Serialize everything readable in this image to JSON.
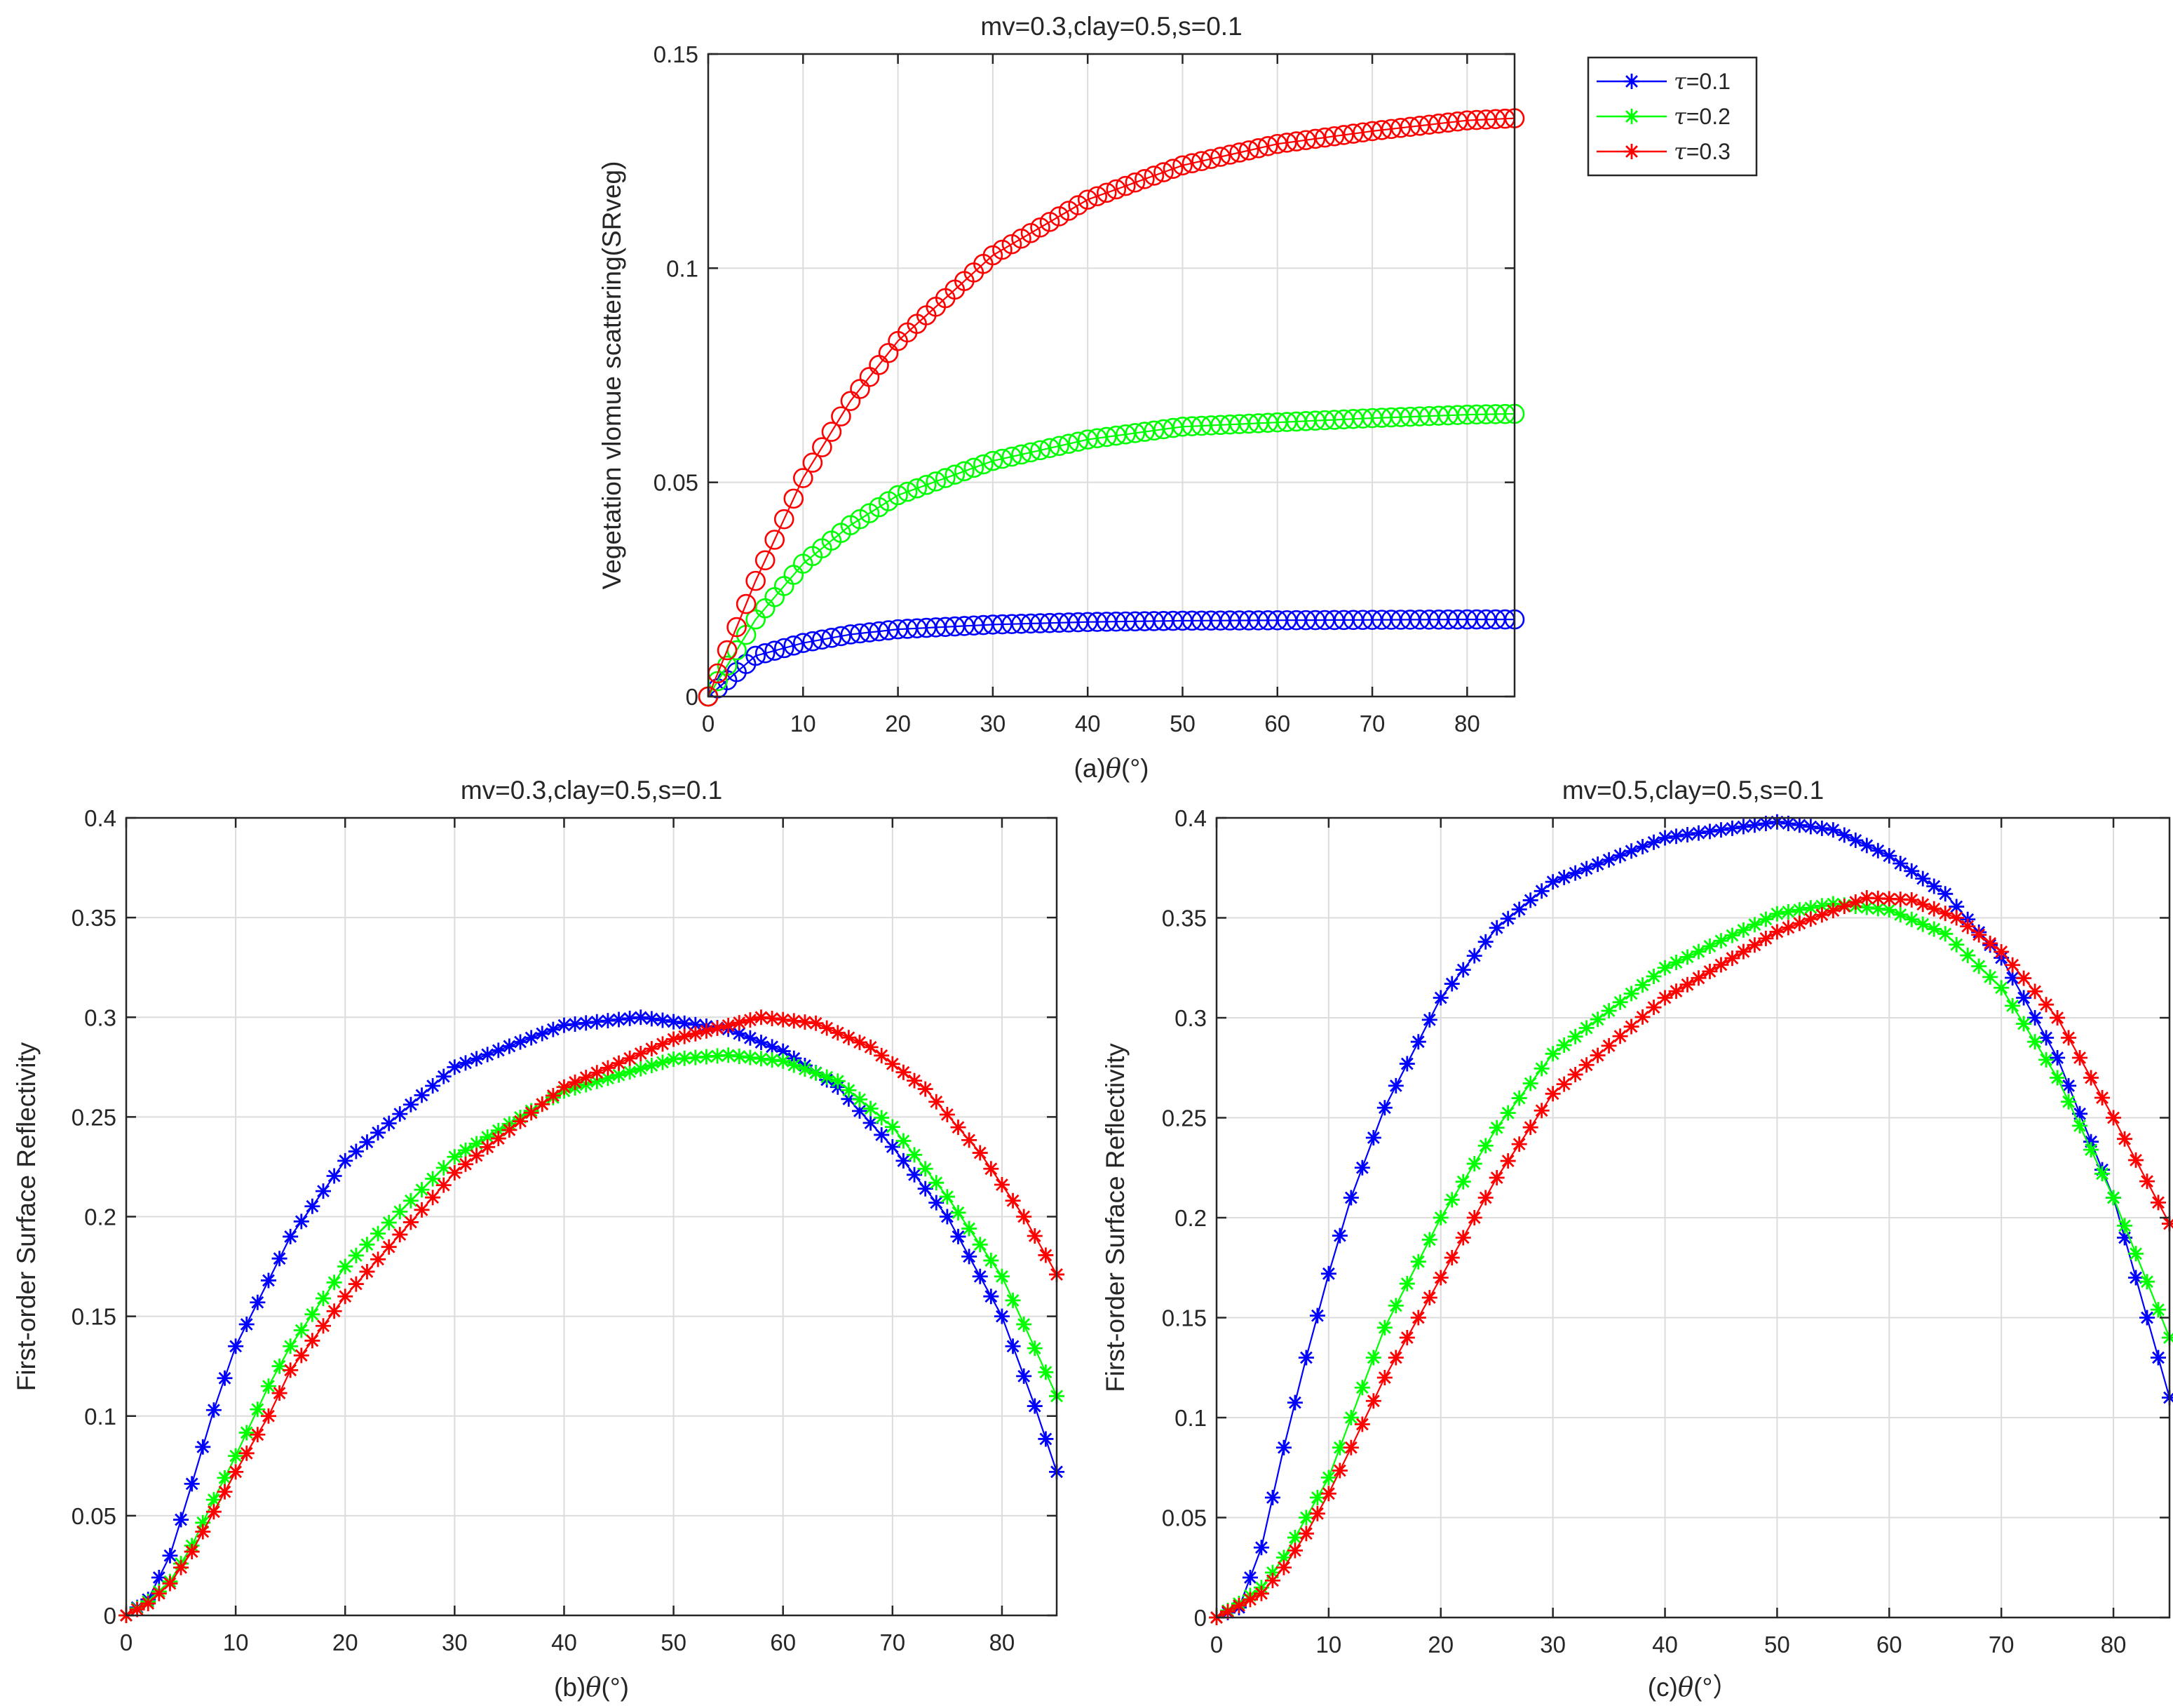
{
  "chart_data": [
    {
      "id": "a",
      "type": "line",
      "marker": "circle",
      "title": "mv=0.3,clay=0.5,s=0.1",
      "xlabel_prefix": "(a)",
      "xlabel_symbol": "θ",
      "xlabel_suffix": "(°)",
      "ylabel": "Vegetation vlomue scattering(SRveg)",
      "xlim": [
        0,
        85
      ],
      "ylim": [
        0,
        0.15
      ],
      "xticks": [
        0,
        10,
        20,
        30,
        40,
        50,
        60,
        70,
        80
      ],
      "yticks": [
        0,
        0.05,
        0.1,
        0.15
      ],
      "ytick_labels": [
        "0",
        "0.05",
        "0.1",
        "0.15"
      ],
      "grid": true,
      "legend": {
        "position": "outside-top-right",
        "entries": [
          {
            "symbol": "τ",
            "label": "=0.1",
            "color": "#0000ff"
          },
          {
            "symbol": "τ",
            "label": "=0.2",
            "color": "#00ff00"
          },
          {
            "symbol": "τ",
            "label": "=0.3",
            "color": "#ff0000"
          }
        ]
      },
      "x_step": 1,
      "series": [
        {
          "name": "τ=0.1",
          "color": "#0000ff",
          "x": [
            0,
            5,
            10,
            15,
            20,
            30,
            40,
            50,
            60,
            70,
            80,
            85
          ],
          "y": [
            0,
            0.0095,
            0.0125,
            0.0145,
            0.0157,
            0.0168,
            0.0174,
            0.0177,
            0.0178,
            0.0179,
            0.018,
            0.018
          ]
        },
        {
          "name": "τ=0.2",
          "color": "#00ff00",
          "x": [
            0,
            5,
            10,
            15,
            20,
            30,
            40,
            50,
            60,
            70,
            80,
            85
          ],
          "y": [
            0,
            0.018,
            0.031,
            0.04,
            0.047,
            0.055,
            0.06,
            0.063,
            0.064,
            0.065,
            0.0658,
            0.066
          ]
        },
        {
          "name": "τ=0.3",
          "color": "#ff0000",
          "x": [
            0,
            5,
            10,
            15,
            20,
            30,
            40,
            50,
            60,
            70,
            80,
            85
          ],
          "y": [
            0,
            0.027,
            0.051,
            0.069,
            0.083,
            0.103,
            0.116,
            0.124,
            0.129,
            0.132,
            0.1345,
            0.135
          ]
        }
      ]
    },
    {
      "id": "b",
      "type": "line",
      "marker": "asterisk",
      "title": "mv=0.3,clay=0.5,s=0.1",
      "xlabel_prefix": "(b)",
      "xlabel_symbol": "θ",
      "xlabel_suffix": "(°)",
      "ylabel": "First-order Surface Reflectivity",
      "xlim": [
        0,
        85
      ],
      "ylim": [
        0,
        0.4
      ],
      "xticks": [
        0,
        10,
        20,
        30,
        40,
        50,
        60,
        70,
        80
      ],
      "yticks": [
        0,
        0.05,
        0.1,
        0.15,
        0.2,
        0.25,
        0.3,
        0.35,
        0.4
      ],
      "ytick_labels": [
        "0",
        "0.05",
        "0.1",
        "0.15",
        "0.2",
        "0.25",
        "0.3",
        "0.35",
        "0.4"
      ],
      "grid": true,
      "x_step": 1,
      "series": [
        {
          "name": "τ=0.1",
          "color": "#0000ff",
          "x": [
            0,
            2,
            4,
            6,
            8,
            10,
            15,
            20,
            30,
            40,
            47,
            55,
            60,
            65,
            70,
            75,
            80,
            83,
            85
          ],
          "y": [
            0,
            0.008,
            0.03,
            0.066,
            0.103,
            0.135,
            0.19,
            0.228,
            0.275,
            0.296,
            0.3,
            0.294,
            0.283,
            0.265,
            0.235,
            0.2,
            0.15,
            0.105,
            0.072
          ]
        },
        {
          "name": "τ=0.2",
          "color": "#00ff00",
          "x": [
            0,
            2,
            4,
            6,
            8,
            10,
            13,
            15,
            20,
            30,
            40,
            50,
            55,
            60,
            65,
            70,
            75,
            80,
            85
          ],
          "y": [
            0,
            0.007,
            0.017,
            0.035,
            0.058,
            0.08,
            0.115,
            0.135,
            0.175,
            0.23,
            0.263,
            0.279,
            0.281,
            0.278,
            0.268,
            0.245,
            0.21,
            0.17,
            0.11
          ]
        },
        {
          "name": "τ=0.3",
          "color": "#ff0000",
          "x": [
            0,
            2,
            4,
            6,
            8,
            10,
            13,
            15,
            20,
            30,
            40,
            50,
            58,
            63,
            68,
            73,
            78,
            82,
            85
          ],
          "y": [
            0,
            0.006,
            0.016,
            0.032,
            0.052,
            0.072,
            0.1,
            0.123,
            0.16,
            0.222,
            0.265,
            0.289,
            0.3,
            0.297,
            0.285,
            0.264,
            0.232,
            0.2,
            0.171
          ]
        }
      ]
    },
    {
      "id": "c",
      "type": "line",
      "marker": "asterisk",
      "title": "mv=0.5,clay=0.5,s=0.1",
      "xlabel_prefix": "(c)",
      "xlabel_symbol": "θ",
      "xlabel_suffix": "(°）",
      "ylabel": "First-order Surface Reflectivity",
      "xlim": [
        0,
        85
      ],
      "ylim": [
        0,
        0.4
      ],
      "xticks": [
        0,
        10,
        20,
        30,
        40,
        50,
        60,
        70,
        80
      ],
      "yticks": [
        0,
        0.05,
        0.1,
        0.15,
        0.2,
        0.25,
        0.3,
        0.35,
        0.4
      ],
      "ytick_labels": [
        "0",
        "0.05",
        "0.1",
        "0.15",
        "0.2",
        "0.25",
        "0.3",
        "0.35",
        "0.4"
      ],
      "grid": true,
      "x_step": 1,
      "series": [
        {
          "name": "τ=0.1",
          "color": "#0000ff",
          "x": [
            0,
            2,
            4,
            6,
            8,
            10,
            12,
            15,
            20,
            25,
            30,
            40,
            50,
            55,
            60,
            65,
            70,
            75,
            80,
            83,
            85
          ],
          "y": [
            0,
            0.005,
            0.035,
            0.085,
            0.13,
            0.172,
            0.21,
            0.255,
            0.31,
            0.345,
            0.368,
            0.39,
            0.398,
            0.394,
            0.381,
            0.362,
            0.33,
            0.28,
            0.21,
            0.15,
            0.11
          ]
        },
        {
          "name": "τ=0.2",
          "color": "#00ff00",
          "x": [
            0,
            2,
            4,
            6,
            8,
            10,
            12,
            15,
            20,
            25,
            30,
            40,
            50,
            55,
            60,
            65,
            70,
            75,
            80,
            85
          ],
          "y": [
            0,
            0.007,
            0.015,
            0.03,
            0.05,
            0.07,
            0.1,
            0.145,
            0.2,
            0.245,
            0.282,
            0.325,
            0.352,
            0.357,
            0.354,
            0.342,
            0.315,
            0.27,
            0.21,
            0.14
          ]
        },
        {
          "name": "τ=0.3",
          "color": "#ff0000",
          "x": [
            0,
            2,
            4,
            6,
            8,
            10,
            12,
            15,
            20,
            25,
            30,
            40,
            50,
            58,
            62,
            66,
            70,
            75,
            80,
            85
          ],
          "y": [
            0,
            0.006,
            0.012,
            0.025,
            0.042,
            0.062,
            0.085,
            0.12,
            0.17,
            0.22,
            0.262,
            0.31,
            0.343,
            0.36,
            0.359,
            0.35,
            0.333,
            0.3,
            0.25,
            0.197
          ]
        }
      ]
    }
  ]
}
